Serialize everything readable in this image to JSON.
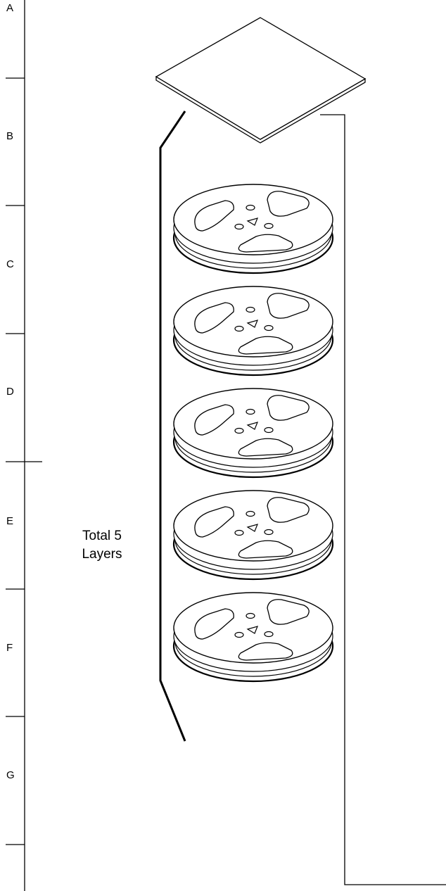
{
  "ruler": {
    "labels": [
      "A",
      "B",
      "C",
      "D",
      "E",
      "F",
      "G"
    ]
  },
  "annotation": {
    "lines": [
      "Total 5",
      "Layers"
    ]
  }
}
